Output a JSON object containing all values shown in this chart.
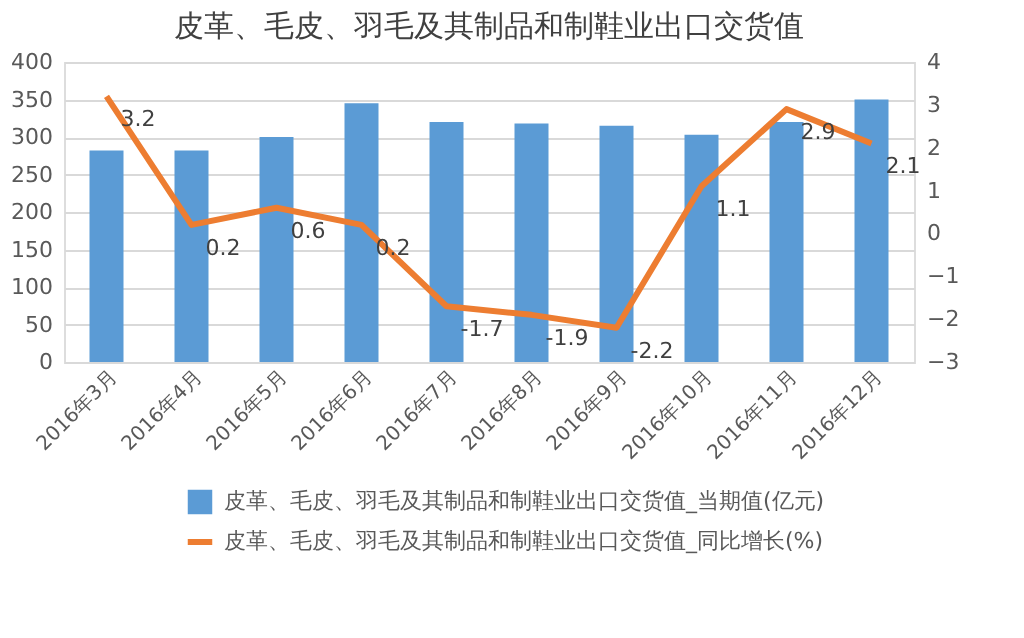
{
  "chart_data": {
    "type": "bar",
    "title": "皮革、毛皮、羽毛及其制品和制鞋业出口交货值",
    "categories": [
      "2016年3月",
      "2016年4月",
      "2016年5月",
      "2016年6月",
      "2016年7月",
      "2016年8月",
      "2016年9月",
      "2016年10月",
      "2016年11月",
      "2016年12月"
    ],
    "series": [
      {
        "name": "皮革、毛皮、羽毛及其制品和制鞋业出口交货值_当期值(亿元)",
        "color": "#5b9bd5",
        "values": [
          282,
          282,
          300,
          345,
          320,
          318,
          315,
          303,
          320,
          350
        ]
      },
      {
        "name": "皮革、毛皮、羽毛及其制品和制鞋业出口交货值_同比增长(%)",
        "color": "#ed7d31",
        "type": "line",
        "axis": "y2",
        "data_labels": true,
        "values": [
          3.2,
          0.2,
          0.6,
          0.2,
          -1.7,
          -1.9,
          -2.2,
          1.1,
          2.9,
          2.1
        ]
      }
    ],
    "ylim": [
      0,
      400
    ],
    "yticks": [
      0,
      50,
      100,
      150,
      200,
      250,
      300,
      350,
      400
    ],
    "y2lim": [
      -3,
      4
    ],
    "y2ticks": [
      -3,
      -2,
      -1,
      0,
      1,
      2,
      3,
      4
    ],
    "grid": "y",
    "legend": "bottom",
    "marker": "none",
    "line_style": "solid"
  }
}
